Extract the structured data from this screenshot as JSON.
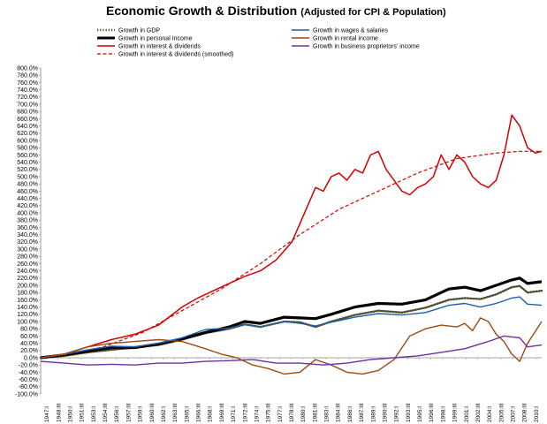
{
  "chart_data": {
    "type": "line",
    "title": "Economic Growth & Distribution",
    "subtitle": "(Adjusted for CPI & Population)",
    "xlabel": "",
    "ylabel": "",
    "ylim": [
      -100,
      800
    ],
    "y_tick_step": 20,
    "y_tick_suffix": "%",
    "grid": false,
    "legend_position": "top",
    "x_tick_labels": [
      "1947:I",
      "1948:III",
      "1950:I",
      "1951:III",
      "1953:I",
      "1954:III",
      "1956:I",
      "1957:III",
      "1959:I",
      "1960:III",
      "1962:I",
      "1963:III",
      "1965:I",
      "1966:III",
      "1968:I",
      "1969:III",
      "1971:I",
      "1972:III",
      "1974:I",
      "1975:III",
      "1977:I",
      "1978:III",
      "1980:I",
      "1981:III",
      "1983:I",
      "1984:III",
      "1986:I",
      "1987:III",
      "1989:I",
      "1990:III",
      "1992:I",
      "1993:III",
      "1995:I",
      "1996:III",
      "1998:I",
      "1999:III",
      "2001:I",
      "2002:III",
      "2004:I",
      "2005:III",
      "2007:I",
      "2008:III",
      "2010:I"
    ],
    "x_range": [
      1947,
      2010.8
    ],
    "series": [
      {
        "name": "Growth in GDP",
        "color": "#4f4f2f",
        "style": "dotted",
        "width": 2.4,
        "x": [
          1947,
          1950,
          1953,
          1956,
          1959,
          1962,
          1965,
          1968,
          1971,
          1973,
          1975,
          1978,
          1980,
          1982,
          1984,
          1987,
          1990,
          1993,
          1996,
          1999,
          2001,
          2003,
          2005,
          2007,
          2008,
          2009,
          2010.8
        ],
        "y": [
          0,
          5,
          15,
          22,
          28,
          35,
          50,
          68,
          80,
          92,
          85,
          100,
          98,
          85,
          100,
          118,
          130,
          125,
          138,
          160,
          165,
          162,
          175,
          195,
          198,
          180,
          185
        ]
      },
      {
        "name": "Growth in personal Income",
        "color": "#000000",
        "style": "solid",
        "width": 3.2,
        "x": [
          1947,
          1950,
          1953,
          1956,
          1959,
          1962,
          1965,
          1968,
          1971,
          1973,
          1975,
          1978,
          1980,
          1982,
          1984,
          1987,
          1990,
          1993,
          1996,
          1999,
          2001,
          2003,
          2005,
          2007,
          2008,
          2009,
          2010.8
        ],
        "y": [
          0,
          8,
          18,
          28,
          28,
          38,
          52,
          70,
          85,
          100,
          95,
          112,
          110,
          108,
          120,
          140,
          150,
          148,
          160,
          190,
          195,
          185,
          200,
          215,
          220,
          205,
          210
        ]
      },
      {
        "name": "Growth in interest & dividends",
        "color": "#d40000",
        "style": "solid",
        "width": 1.5,
        "x": [
          1947,
          1950,
          1953,
          1956,
          1959,
          1962,
          1965,
          1967,
          1969,
          1971,
          1973,
          1975,
          1977,
          1979,
          1981,
          1982,
          1983,
          1984,
          1985,
          1986,
          1987,
          1988,
          1989,
          1990,
          1991,
          1992,
          1993,
          1994,
          1995,
          1996,
          1997,
          1998,
          1999,
          2000,
          2001,
          2002,
          2003,
          2004,
          2005,
          2006,
          2007,
          2008,
          2009,
          2010,
          2010.8
        ],
        "y": [
          0,
          10,
          30,
          50,
          65,
          90,
          140,
          165,
          185,
          205,
          225,
          240,
          270,
          320,
          420,
          470,
          460,
          500,
          510,
          490,
          520,
          510,
          560,
          570,
          520,
          490,
          460,
          450,
          470,
          480,
          500,
          560,
          520,
          560,
          540,
          500,
          480,
          470,
          490,
          560,
          670,
          640,
          580,
          565,
          570
        ]
      },
      {
        "name": "Growth in interest & dividends (smoothed)",
        "color": "#d40000",
        "style": "dashed",
        "width": 1.2,
        "x": [
          1947,
          1950,
          1955,
          1960,
          1965,
          1970,
          1975,
          1980,
          1985,
          1990,
          1995,
          2000,
          2005,
          2008,
          2010.8
        ],
        "y": [
          0,
          8,
          30,
          70,
          130,
          190,
          260,
          340,
          410,
          460,
          510,
          550,
          565,
          570,
          570
        ]
      },
      {
        "name": "Growth in wages & salaries",
        "color": "#1f5fa8",
        "style": "solid",
        "width": 1.4,
        "x": [
          1947,
          1950,
          1953,
          1956,
          1959,
          1962,
          1965,
          1968,
          1971,
          1973,
          1975,
          1978,
          1980,
          1982,
          1984,
          1987,
          1990,
          1993,
          1996,
          1999,
          2001,
          2003,
          2005,
          2007,
          2008,
          2009,
          2010.8
        ],
        "y": [
          0,
          10,
          22,
          32,
          30,
          40,
          55,
          78,
          82,
          92,
          85,
          100,
          95,
          88,
          98,
          112,
          122,
          118,
          125,
          145,
          150,
          140,
          150,
          165,
          168,
          148,
          145
        ]
      },
      {
        "name": "Growth in rental income",
        "color": "#9a4a12",
        "style": "solid",
        "width": 1.4,
        "x": [
          1947,
          1950,
          1953,
          1956,
          1959,
          1962,
          1965,
          1968,
          1970,
          1972,
          1974,
          1976,
          1978,
          1980,
          1982,
          1984,
          1986,
          1988,
          1990,
          1992,
          1994,
          1996,
          1998,
          2000,
          2001,
          2002,
          2003,
          2004,
          2005,
          2006,
          2007,
          2008,
          2009,
          2010.8
        ],
        "y": [
          0,
          10,
          30,
          40,
          45,
          50,
          45,
          25,
          10,
          0,
          -20,
          -30,
          -45,
          -40,
          -5,
          -20,
          -40,
          -45,
          -35,
          -5,
          60,
          80,
          90,
          85,
          95,
          75,
          110,
          100,
          65,
          45,
          10,
          -10,
          40,
          100
        ]
      },
      {
        "name": "Growth in business proprietors' income",
        "color": "#7030a0",
        "style": "solid",
        "width": 1.4,
        "x": [
          1947,
          1950,
          1953,
          1956,
          1959,
          1962,
          1965,
          1968,
          1971,
          1974,
          1977,
          1980,
          1983,
          1986,
          1989,
          1992,
          1995,
          1998,
          2001,
          2004,
          2006,
          2008,
          2009,
          2010.8
        ],
        "y": [
          -10,
          -15,
          -20,
          -18,
          -20,
          -15,
          -15,
          -10,
          -8,
          -5,
          -15,
          -15,
          -20,
          -15,
          -5,
          0,
          5,
          15,
          25,
          45,
          60,
          55,
          30,
          35
        ]
      }
    ],
    "legend_order": [
      0,
      4,
      1,
      5,
      2,
      6,
      3
    ]
  }
}
